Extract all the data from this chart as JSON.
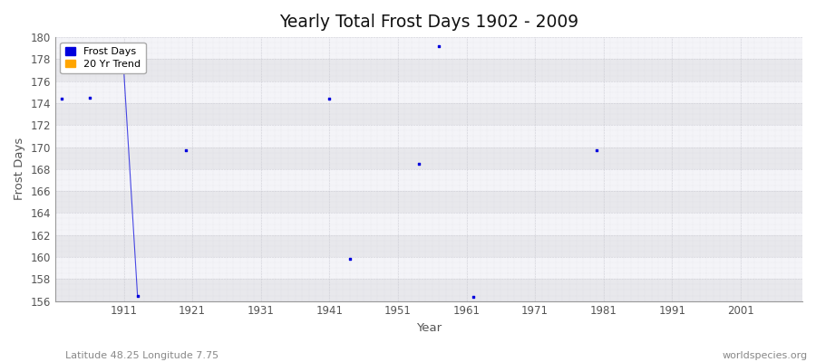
{
  "title": "Yearly Total Frost Days 1902 - 2009",
  "xlabel": "Year",
  "ylabel": "Frost Days",
  "footer_left": "Latitude 48.25 Longitude 7.75",
  "footer_right": "worldspecies.org",
  "xlim": [
    1901,
    2010
  ],
  "ylim": [
    156,
    180
  ],
  "yticks": [
    156,
    158,
    160,
    162,
    164,
    166,
    168,
    170,
    172,
    174,
    176,
    178,
    180
  ],
  "xticks": [
    1911,
    1921,
    1931,
    1941,
    1951,
    1961,
    1971,
    1981,
    1991,
    2001
  ],
  "background_color": "#f0f0f0",
  "plot_bg_color": "#f0f0f0",
  "band_color_dark": "#e8e8ec",
  "band_color_light": "#f4f4f8",
  "grid_color": "#c8c8d0",
  "point_color": "#0000dd",
  "trend_color": "#ffa500",
  "frost_days_x": [
    1902,
    1906,
    1911,
    1913,
    1920,
    1941,
    1944,
    1954,
    1957,
    1962,
    1980
  ],
  "frost_days_y": [
    174.4,
    174.5,
    177.0,
    156.5,
    169.7,
    174.4,
    159.8,
    168.5,
    179.2,
    156.4,
    169.7
  ],
  "line_x": [
    1911,
    1913
  ],
  "line_y": [
    177.0,
    156.5
  ],
  "legend_frost": "Frost Days",
  "legend_trend": "20 Yr Trend"
}
